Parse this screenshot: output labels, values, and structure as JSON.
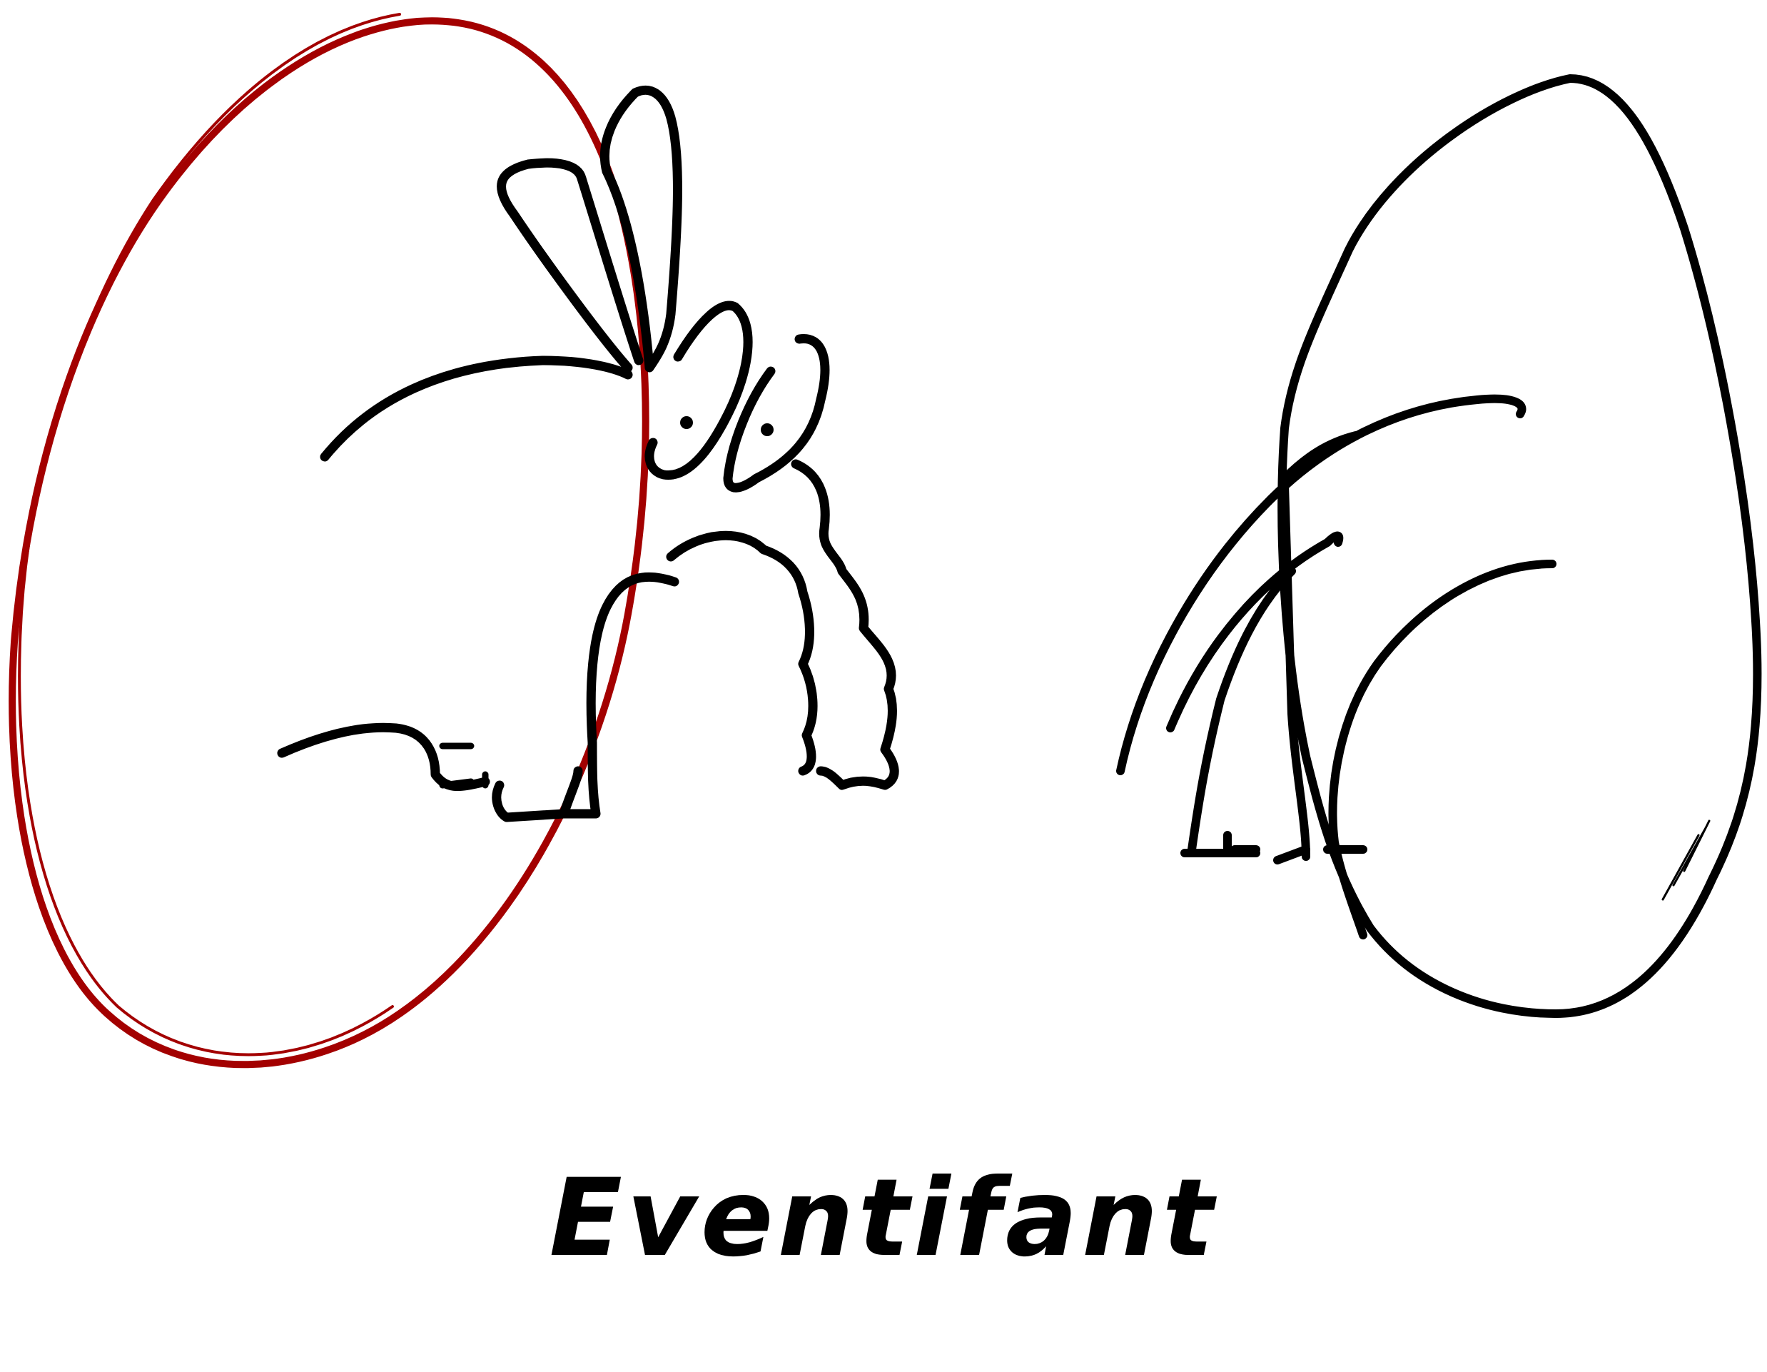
{
  "caption": {
    "text": "Eventifant"
  },
  "colors": {
    "ink": "#000000",
    "accent_red": "#a30000",
    "background": "#ffffff"
  },
  "figures": [
    {
      "name": "egg-left",
      "outline_color": "accent_red"
    },
    {
      "name": "eventifant-creature",
      "outline_color": "ink"
    },
    {
      "name": "egg-right",
      "outline_color": "ink"
    },
    {
      "name": "creature-silhouette-in-egg",
      "outline_color": "ink"
    }
  ]
}
